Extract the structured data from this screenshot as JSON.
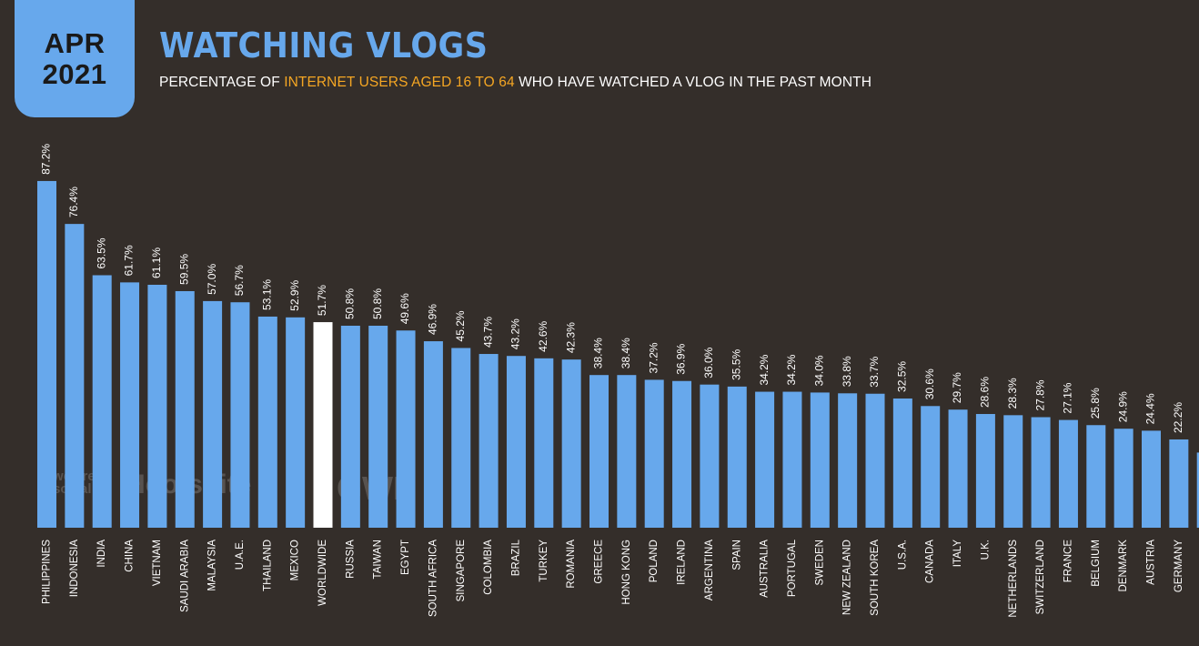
{
  "header": {
    "date_month": "APR",
    "date_year": "2021",
    "title": "WATCHING VLOGS",
    "subtitle_part1": "PERCENTAGE OF ",
    "subtitle_highlight": "INTERNET USERS AGED 16 TO 64",
    "subtitle_part2": " WHO HAVE WATCHED A VLOG IN THE PAST MONTH"
  },
  "watermarks": {
    "wearesocial": "we are social",
    "hootsuite": "Hootsuite",
    "gwi": "GWI."
  },
  "colors": {
    "background": "#342e2a",
    "bar": "#67a8ec",
    "highlight_bar": "#ffffff",
    "accent": "#f5a623"
  },
  "chart_data": {
    "type": "bar",
    "orientation": "vertical",
    "highlight_category": "WORLDWIDE",
    "categories": [
      "PHILIPPINES",
      "INDONESIA",
      "INDIA",
      "CHINA",
      "VIETNAM",
      "SAUDI ARABIA",
      "MALAYSIA",
      "U.A.E.",
      "THAILAND",
      "MEXICO",
      "WORLDWIDE",
      "RUSSIA",
      "TAIWAN",
      "EGYPT",
      "SOUTH AFRICA",
      "SINGAPORE",
      "COLOMBIA",
      "BRAZIL",
      "TURKEY",
      "ROMANIA",
      "GREECE",
      "HONG KONG",
      "POLAND",
      "IRELAND",
      "ARGENTINA",
      "SPAIN",
      "AUSTRALIA",
      "PORTUGAL",
      "SWEDEN",
      "NEW ZEALAND",
      "SOUTH KOREA",
      "U.S.A.",
      "CANADA",
      "ITALY",
      "U.K.",
      "NETHERLANDS",
      "SWITZERLAND",
      "FRANCE",
      "BELGIUM",
      "DENMARK",
      "AUSTRIA",
      "GERMANY",
      ""
    ],
    "values": [
      87.2,
      76.4,
      63.5,
      61.7,
      61.1,
      59.5,
      57.0,
      56.7,
      53.1,
      52.9,
      51.7,
      50.8,
      50.8,
      49.6,
      46.9,
      45.2,
      43.7,
      43.2,
      42.6,
      42.3,
      38.4,
      38.4,
      37.2,
      36.9,
      36.0,
      35.5,
      34.2,
      34.2,
      34.0,
      33.8,
      33.7,
      32.5,
      30.6,
      29.7,
      28.6,
      28.3,
      27.8,
      27.1,
      25.8,
      24.9,
      24.4,
      22.2,
      18.9
    ],
    "value_labels": [
      "87.2%",
      "76.4%",
      "63.5%",
      "61.7%",
      "61.1%",
      "59.5%",
      "57.0%",
      "56.7%",
      "53.1%",
      "52.9%",
      "51.7%",
      "50.8%",
      "50.8%",
      "49.6%",
      "46.9%",
      "45.2%",
      "43.7%",
      "43.2%",
      "42.6%",
      "42.3%",
      "38.4%",
      "38.4%",
      "37.2%",
      "36.9%",
      "36.0%",
      "35.5%",
      "34.2%",
      "34.2%",
      "34.0%",
      "33.8%",
      "33.7%",
      "32.5%",
      "30.6%",
      "29.7%",
      "28.6%",
      "28.3%",
      "27.8%",
      "27.1%",
      "25.8%",
      "24.9%",
      "24.4%",
      "22.2%",
      ""
    ],
    "ylim": [
      0,
      100
    ],
    "grid": false,
    "legend": "none"
  }
}
